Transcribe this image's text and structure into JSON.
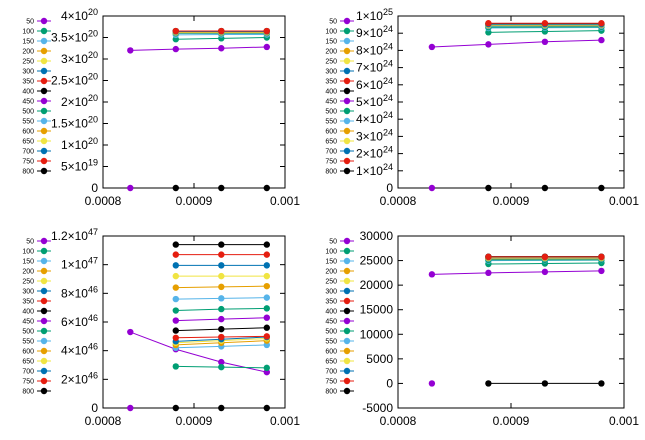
{
  "legend_labels": [
    "50",
    "100",
    "150",
    "200",
    "250",
    "300",
    "350",
    "400",
    "450",
    "500",
    "550",
    "600",
    "650",
    "700",
    "750",
    "800"
  ],
  "colors": [
    "#9400d3",
    "#009e73",
    "#56b4e9",
    "#e69f00",
    "#f0e442",
    "#0072b2",
    "#e51e10",
    "#000000",
    "#9400d3",
    "#009e73",
    "#56b4e9",
    "#e69f00",
    "#f0e442",
    "#0072b2",
    "#e51e10",
    "#000000"
  ],
  "chart_data": [
    {
      "type": "line",
      "position": "top-left",
      "grid": false,
      "xlim": [
        0.0008,
        0.001
      ],
      "xticks": [
        0.0008,
        0.0009,
        0.001
      ],
      "xtick_labels": [
        "0.0008",
        "0.0009",
        "0.001"
      ],
      "ylim": [
        0,
        4e+20
      ],
      "yticks": [
        0,
        5e+19,
        1e+20,
        1.5e+20,
        2e+20,
        2.5e+20,
        3e+20,
        3.5e+20,
        4e+20
      ],
      "ytick_labels": [
        {
          "mant": "0",
          "exp": ""
        },
        {
          "mant": "5×10",
          "exp": "19"
        },
        {
          "mant": "1×10",
          "exp": "20"
        },
        {
          "mant": "1.5×10",
          "exp": "20"
        },
        {
          "mant": "2×10",
          "exp": "20"
        },
        {
          "mant": "2.5×10",
          "exp": "20"
        },
        {
          "mant": "3×10",
          "exp": "20"
        },
        {
          "mant": "3.5×10",
          "exp": "20"
        },
        {
          "mant": "4×10",
          "exp": "20"
        }
      ],
      "series": [
        {
          "name": "50",
          "x": [
            0.00083,
            0.00088,
            0.00093,
            0.00098
          ],
          "y": [
            3.2e+20,
            3.23e+20,
            3.25e+20,
            3.28e+20
          ]
        },
        {
          "name": "100",
          "x": [
            0.00088,
            0.00093,
            0.00098
          ],
          "y": [
            3.46e+20,
            3.48e+20,
            3.5e+20
          ]
        },
        {
          "name": "150",
          "x": [
            0.00088,
            0.00093,
            0.00098
          ],
          "y": [
            3.56e+20,
            3.57e+20,
            3.57e+20
          ]
        },
        {
          "name": "200",
          "x": [
            0.00088,
            0.00093,
            0.00098
          ],
          "y": [
            3.6e+20,
            3.6e+20,
            3.6e+20
          ]
        },
        {
          "name": "250",
          "x": [
            0.00088,
            0.00093,
            0.00098
          ],
          "y": [
            3.62e+20,
            3.62e+20,
            3.62e+20
          ]
        },
        {
          "name": "300",
          "x": [
            0.00088,
            0.00093,
            0.00098
          ],
          "y": [
            3.63e+20,
            3.63e+20,
            3.63e+20
          ]
        },
        {
          "name": "350",
          "x": [
            0.00088,
            0.00093,
            0.00098
          ],
          "y": [
            3.64e+20,
            3.64e+20,
            3.64e+20
          ]
        },
        {
          "name": "400",
          "x": [
            0.00088,
            0.00093,
            0.00098
          ],
          "y": [
            3.65e+20,
            3.65e+20,
            3.65e+20
          ]
        },
        {
          "name": "450",
          "x": [
            0.00083
          ],
          "y": [
            0
          ]
        },
        {
          "name": "500",
          "x": [
            0.00088,
            0.00093,
            0.00098
          ],
          "y": [
            3.6e+20,
            3.6e+20,
            3.6e+20
          ]
        },
        {
          "name": "550",
          "x": [
            0.00088,
            0.00093,
            0.00098
          ],
          "y": [
            3.61e+20,
            3.61e+20,
            3.61e+20
          ]
        },
        {
          "name": "600",
          "x": [
            0.00088,
            0.00093,
            0.00098
          ],
          "y": [
            3.62e+20,
            3.62e+20,
            3.62e+20
          ]
        },
        {
          "name": "650",
          "x": [
            0.00088,
            0.00093,
            0.00098
          ],
          "y": [
            3.63e+20,
            3.63e+20,
            3.63e+20
          ]
        },
        {
          "name": "700",
          "x": [
            0.00088,
            0.00093,
            0.00098
          ],
          "y": [
            3.64e+20,
            3.64e+20,
            3.64e+20
          ]
        },
        {
          "name": "750",
          "x": [
            0.00088,
            0.00093,
            0.00098
          ],
          "y": [
            3.65e+20,
            3.65e+20,
            3.65e+20
          ]
        },
        {
          "name": "800",
          "x": [
            0.00088,
            0.00093,
            0.00098
          ],
          "y": [
            0,
            0,
            0
          ]
        }
      ]
    },
    {
      "type": "line",
      "position": "top-right",
      "grid": false,
      "xlim": [
        0.0008,
        0.001
      ],
      "xticks": [
        0.0008,
        0.0009,
        0.001
      ],
      "xtick_labels": [
        "0.0008",
        "0.0009",
        "0.001"
      ],
      "ylim": [
        0,
        1e+25
      ],
      "yticks": [
        0,
        1e+24,
        2e+24,
        3e+24,
        4e+24,
        5e+24,
        6e+24,
        7e+24,
        8e+24,
        9e+24,
        1e+25
      ],
      "ytick_labels": [
        {
          "mant": "0",
          "exp": ""
        },
        {
          "mant": "1×10",
          "exp": "24"
        },
        {
          "mant": "2×10",
          "exp": "24"
        },
        {
          "mant": "3×10",
          "exp": "24"
        },
        {
          "mant": "4×10",
          "exp": "24"
        },
        {
          "mant": "5×10",
          "exp": "24"
        },
        {
          "mant": "6×10",
          "exp": "24"
        },
        {
          "mant": "7×10",
          "exp": "24"
        },
        {
          "mant": "8×10",
          "exp": "24"
        },
        {
          "mant": "9×10",
          "exp": "24"
        },
        {
          "mant": "1×10",
          "exp": "25"
        }
      ],
      "series": [
        {
          "name": "50",
          "x": [
            0.00083,
            0.00088,
            0.00093,
            0.00098
          ],
          "y": [
            8.2e+24,
            8.35e+24,
            8.5e+24,
            8.6e+24
          ]
        },
        {
          "name": "100",
          "x": [
            0.00088,
            0.00093,
            0.00098
          ],
          "y": [
            9.05e+24,
            9.1e+24,
            9.15e+24
          ]
        },
        {
          "name": "150",
          "x": [
            0.00088,
            0.00093,
            0.00098
          ],
          "y": [
            9.3e+24,
            9.32e+24,
            9.33e+24
          ]
        },
        {
          "name": "200",
          "x": [
            0.00088,
            0.00093,
            0.00098
          ],
          "y": [
            9.4e+24,
            9.41e+24,
            9.42e+24
          ]
        },
        {
          "name": "250",
          "x": [
            0.00088,
            0.00093,
            0.00098
          ],
          "y": [
            9.45e+24,
            9.46e+24,
            9.46e+24
          ]
        },
        {
          "name": "300",
          "x": [
            0.00088,
            0.00093,
            0.00098
          ],
          "y": [
            9.48e+24,
            9.49e+24,
            9.49e+24
          ]
        },
        {
          "name": "350",
          "x": [
            0.00088,
            0.00093,
            0.00098
          ],
          "y": [
            9.5e+24,
            9.5e+24,
            9.5e+24
          ]
        },
        {
          "name": "400",
          "x": [
            0.00088,
            0.00093,
            0.00098
          ],
          "y": [
            9.55e+24,
            9.55e+24,
            9.55e+24
          ]
        },
        {
          "name": "450",
          "x": [
            0.00083
          ],
          "y": [
            0
          ]
        },
        {
          "name": "500",
          "x": [
            0.00088,
            0.00093,
            0.00098
          ],
          "y": [
            9.35e+24,
            9.36e+24,
            9.37e+24
          ]
        },
        {
          "name": "550",
          "x": [
            0.00088,
            0.00093,
            0.00098
          ],
          "y": [
            9.42e+24,
            9.43e+24,
            9.43e+24
          ]
        },
        {
          "name": "600",
          "x": [
            0.00088,
            0.00093,
            0.00098
          ],
          "y": [
            9.46e+24,
            9.46e+24,
            9.47e+24
          ]
        },
        {
          "name": "650",
          "x": [
            0.00088,
            0.00093,
            0.00098
          ],
          "y": [
            9.49e+24,
            9.49e+24,
            9.5e+24
          ]
        },
        {
          "name": "700",
          "x": [
            0.00088,
            0.00093,
            0.00098
          ],
          "y": [
            9.52e+24,
            9.52e+24,
            9.52e+24
          ]
        },
        {
          "name": "750",
          "x": [
            0.00088,
            0.00093,
            0.00098
          ],
          "y": [
            9.58e+24,
            9.58e+24,
            9.58e+24
          ]
        },
        {
          "name": "800",
          "x": [
            0.00088,
            0.00093,
            0.00098
          ],
          "y": [
            0,
            0,
            0
          ]
        }
      ]
    },
    {
      "type": "line",
      "position": "bottom-left",
      "grid": false,
      "xlim": [
        0.0008,
        0.001
      ],
      "xticks": [
        0.0008,
        0.0009,
        0.001
      ],
      "xtick_labels": [
        "0.0008",
        "0.0009",
        "0.001"
      ],
      "ylim": [
        0,
        1.2e+47
      ],
      "yticks": [
        0,
        2e+46,
        4e+46,
        6e+46,
        8e+46,
        1e+47,
        1.2e+47
      ],
      "ytick_labels": [
        {
          "mant": "0",
          "exp": ""
        },
        {
          "mant": "2×10",
          "exp": "46"
        },
        {
          "mant": "4×10",
          "exp": "46"
        },
        {
          "mant": "6×10",
          "exp": "46"
        },
        {
          "mant": "8×10",
          "exp": "46"
        },
        {
          "mant": "1×10",
          "exp": "47"
        },
        {
          "mant": "1.2×10",
          "exp": "47"
        }
      ],
      "series": [
        {
          "name": "50",
          "x": [
            0.00083,
            0.00088,
            0.00093,
            0.00098
          ],
          "y": [
            5.3e+46,
            4.1e+46,
            3.2e+46,
            2.5e+46
          ]
        },
        {
          "name": "100",
          "x": [
            0.00088,
            0.00093,
            0.00098
          ],
          "y": [
            2.9e+46,
            2.85e+46,
            2.8e+46
          ]
        },
        {
          "name": "150",
          "x": [
            0.00088,
            0.00093,
            0.00098
          ],
          "y": [
            4.2e+46,
            4.3e+46,
            4.4e+46
          ]
        },
        {
          "name": "200",
          "x": [
            0.00088,
            0.00093,
            0.00098
          ],
          "y": [
            4.4e+46,
            4.55e+46,
            4.7e+46
          ]
        },
        {
          "name": "250",
          "x": [
            0.00088,
            0.00093,
            0.00098
          ],
          "y": [
            4.55e+46,
            4.7e+46,
            4.85e+46
          ]
        },
        {
          "name": "300",
          "x": [
            0.00088,
            0.00093,
            0.00098
          ],
          "y": [
            4.65e+46,
            4.8e+46,
            4.95e+46
          ]
        },
        {
          "name": "350",
          "x": [
            0.00088,
            0.00093,
            0.00098
          ],
          "y": [
            4.9e+46,
            4.95e+46,
            5e+46
          ]
        },
        {
          "name": "400",
          "x": [
            0.00088,
            0.00093,
            0.00098
          ],
          "y": [
            5.4e+46,
            5.5e+46,
            5.6e+46
          ]
        },
        {
          "name": "450",
          "x": [
            0.00088,
            0.00093,
            0.00098
          ],
          "y": [
            6.1e+46,
            6.2e+46,
            6.3e+46
          ]
        },
        {
          "name": "500",
          "x": [
            0.00088,
            0.00093,
            0.00098
          ],
          "y": [
            6.8e+46,
            6.9e+46,
            6.95e+46
          ]
        },
        {
          "name": "550",
          "x": [
            0.00088,
            0.00093,
            0.00098
          ],
          "y": [
            7.6e+46,
            7.65e+46,
            7.7e+46
          ]
        },
        {
          "name": "600",
          "x": [
            0.00088,
            0.00093,
            0.00098
          ],
          "y": [
            8.4e+46,
            8.45e+46,
            8.5e+46
          ]
        },
        {
          "name": "650",
          "x": [
            0.00088,
            0.00093,
            0.00098
          ],
          "y": [
            9.2e+46,
            9.2e+46,
            9.2e+46
          ]
        },
        {
          "name": "700",
          "x": [
            0.00088,
            0.00093,
            0.00098
          ],
          "y": [
            9.95e+46,
            9.95e+46,
            9.95e+46
          ]
        },
        {
          "name": "750",
          "x": [
            0.00088,
            0.00093,
            0.00098
          ],
          "y": [
            1.07e+47,
            1.07e+47,
            1.07e+47
          ]
        },
        {
          "name": "800",
          "x": [
            0.00088,
            0.00093,
            0.00098
          ],
          "y": [
            1.14e+47,
            1.14e+47,
            1.14e+47
          ]
        },
        {
          "name": "450",
          "x": [
            0.00083
          ],
          "y": [
            0
          ]
        },
        {
          "name": "800",
          "x": [
            0.00088,
            0.00093,
            0.00098
          ],
          "y": [
            0,
            0,
            0
          ]
        }
      ]
    },
    {
      "type": "line",
      "position": "bottom-right",
      "grid": false,
      "xlim": [
        0.0008,
        0.001
      ],
      "xticks": [
        0.0008,
        0.0009,
        0.001
      ],
      "xtick_labels": [
        "0.0008",
        "0.0009",
        "0.001"
      ],
      "ylim": [
        -5000,
        30000
      ],
      "yticks": [
        -5000,
        0,
        5000,
        10000,
        15000,
        20000,
        25000,
        30000
      ],
      "ytick_labels": [
        {
          "mant": "-5000",
          "exp": ""
        },
        {
          "mant": "0",
          "exp": ""
        },
        {
          "mant": "5000",
          "exp": ""
        },
        {
          "mant": "10000",
          "exp": ""
        },
        {
          "mant": "15000",
          "exp": ""
        },
        {
          "mant": "20000",
          "exp": ""
        },
        {
          "mant": "25000",
          "exp": ""
        },
        {
          "mant": "30000",
          "exp": ""
        }
      ],
      "series": [
        {
          "name": "50",
          "x": [
            0.00083,
            0.00088,
            0.00093,
            0.00098
          ],
          "y": [
            22200,
            22500,
            22700,
            22900
          ]
        },
        {
          "name": "100",
          "x": [
            0.00088,
            0.00093,
            0.00098
          ],
          "y": [
            24300,
            24400,
            24500
          ]
        },
        {
          "name": "150",
          "x": [
            0.00088,
            0.00093,
            0.00098
          ],
          "y": [
            25000,
            25050,
            25100
          ]
        },
        {
          "name": "200",
          "x": [
            0.00088,
            0.00093,
            0.00098
          ],
          "y": [
            25300,
            25350,
            25350
          ]
        },
        {
          "name": "250",
          "x": [
            0.00088,
            0.00093,
            0.00098
          ],
          "y": [
            25450,
            25450,
            25450
          ]
        },
        {
          "name": "300",
          "x": [
            0.00088,
            0.00093,
            0.00098
          ],
          "y": [
            25550,
            25550,
            25550
          ]
        },
        {
          "name": "350",
          "x": [
            0.00088,
            0.00093,
            0.00098
          ],
          "y": [
            25650,
            25650,
            25650
          ]
        },
        {
          "name": "400",
          "x": [
            0.00088,
            0.00093,
            0.00098
          ],
          "y": [
            25800,
            25800,
            25800
          ]
        },
        {
          "name": "450",
          "x": [
            0.00083
          ],
          "y": [
            0
          ]
        },
        {
          "name": "500",
          "x": [
            0.00088,
            0.00093,
            0.00098
          ],
          "y": [
            25150,
            25150,
            25150
          ]
        },
        {
          "name": "550",
          "x": [
            0.00088,
            0.00093,
            0.00098
          ],
          "y": [
            25400,
            25400,
            25400
          ]
        },
        {
          "name": "600",
          "x": [
            0.00088,
            0.00093,
            0.00098
          ],
          "y": [
            25500,
            25500,
            25500
          ]
        },
        {
          "name": "650",
          "x": [
            0.00088,
            0.00093,
            0.00098
          ],
          "y": [
            25600,
            25600,
            25600
          ]
        },
        {
          "name": "700",
          "x": [
            0.00088,
            0.00093,
            0.00098
          ],
          "y": [
            25700,
            25700,
            25700
          ]
        },
        {
          "name": "750",
          "x": [
            0.00088,
            0.00093,
            0.00098
          ],
          "y": [
            25750,
            25750,
            25750
          ]
        },
        {
          "name": "800",
          "x": [
            0.00088,
            0.00093,
            0.00098
          ],
          "y": [
            0,
            0,
            0
          ]
        }
      ]
    }
  ]
}
